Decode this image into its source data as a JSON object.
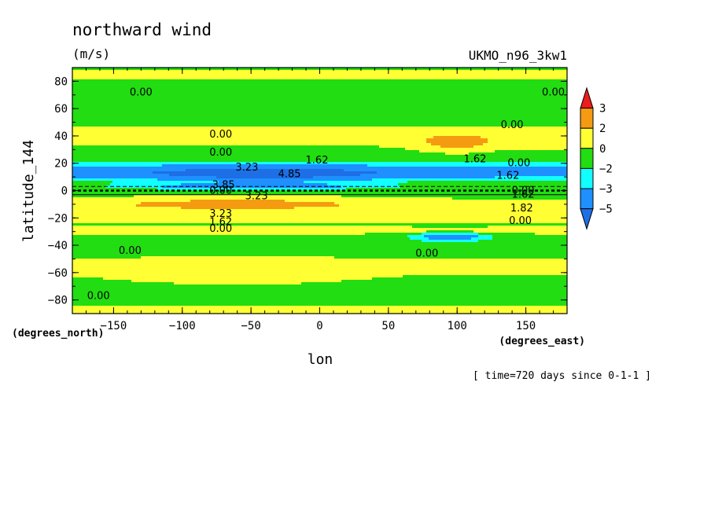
{
  "chart_data": {
    "type": "filled-contour",
    "title": "northward wind",
    "units": "(m/s)",
    "dataset": "UKMO_n96_3kw1",
    "xlabel": "lon",
    "ylabel": "latitude_144",
    "x_unit_label": "(degrees_east)",
    "y_unit_label": "(degrees_north)",
    "time_note": "[ time=720 days since 0-1-1 ]",
    "xlim": [
      -180,
      180
    ],
    "ylim": [
      -90,
      90
    ],
    "x_ticks": [
      -150,
      -100,
      -50,
      0,
      50,
      100,
      150
    ],
    "y_ticks": [
      -80,
      -60,
      -40,
      -20,
      0,
      20,
      40,
      60,
      80
    ],
    "x_tick_labels": [
      "−150",
      "−100",
      "−50",
      "0",
      "50",
      "100",
      "150"
    ],
    "y_tick_labels": [
      "−80",
      "−60",
      "−40",
      "−20",
      "0",
      "20",
      "40",
      "60",
      "80"
    ],
    "colorbar": {
      "labels": [
        "3",
        "2",
        "0",
        "−2",
        "−3",
        "−5"
      ],
      "colors": [
        "#ee1c1c",
        "#f59b12",
        "#ffff33",
        "#22dd11",
        "#11ffff",
        "#1e90ff",
        "#1e6ee6"
      ]
    },
    "contour_labels": [
      {
        "text": "0.00",
        "lon": -130,
        "lat": 72
      },
      {
        "text": "0.00",
        "lon": 170,
        "lat": 72
      },
      {
        "text": "0.00",
        "lon": 140,
        "lat": 48
      },
      {
        "text": "0.00",
        "lon": -72,
        "lat": 41
      },
      {
        "text": "0.00",
        "lon": -72,
        "lat": 28
      },
      {
        "text": "3.23",
        "lon": -53,
        "lat": 17
      },
      {
        "text": "1.62",
        "lon": -2,
        "lat": 22
      },
      {
        "text": "4.85",
        "lon": -22,
        "lat": 12
      },
      {
        "text": "1.62",
        "lon": 113,
        "lat": 23
      },
      {
        "text": "0.00",
        "lon": 145,
        "lat": 20
      },
      {
        "text": "1.62",
        "lon": 137,
        "lat": 11
      },
      {
        "text": "3.85",
        "lon": -70,
        "lat": 4
      },
      {
        "text": "0.00",
        "lon": -72,
        "lat": 0
      },
      {
        "text": "3.23",
        "lon": -46,
        "lat": -4
      },
      {
        "text": "0.00",
        "lon": 148,
        "lat": 0
      },
      {
        "text": "1.62",
        "lon": 148,
        "lat": -3
      },
      {
        "text": "1.82",
        "lon": 147,
        "lat": -13
      },
      {
        "text": "0.00",
        "lon": 146,
        "lat": -22
      },
      {
        "text": "3.23",
        "lon": -72,
        "lat": -17
      },
      {
        "text": "1.62",
        "lon": -72,
        "lat": -23
      },
      {
        "text": "0.00",
        "lon": -72,
        "lat": -28
      },
      {
        "text": "0.00",
        "lon": -138,
        "lat": -44
      },
      {
        "text": "0.00",
        "lon": 78,
        "lat": -46
      },
      {
        "text": "0.00",
        "lon": -161,
        "lat": -77
      }
    ]
  }
}
